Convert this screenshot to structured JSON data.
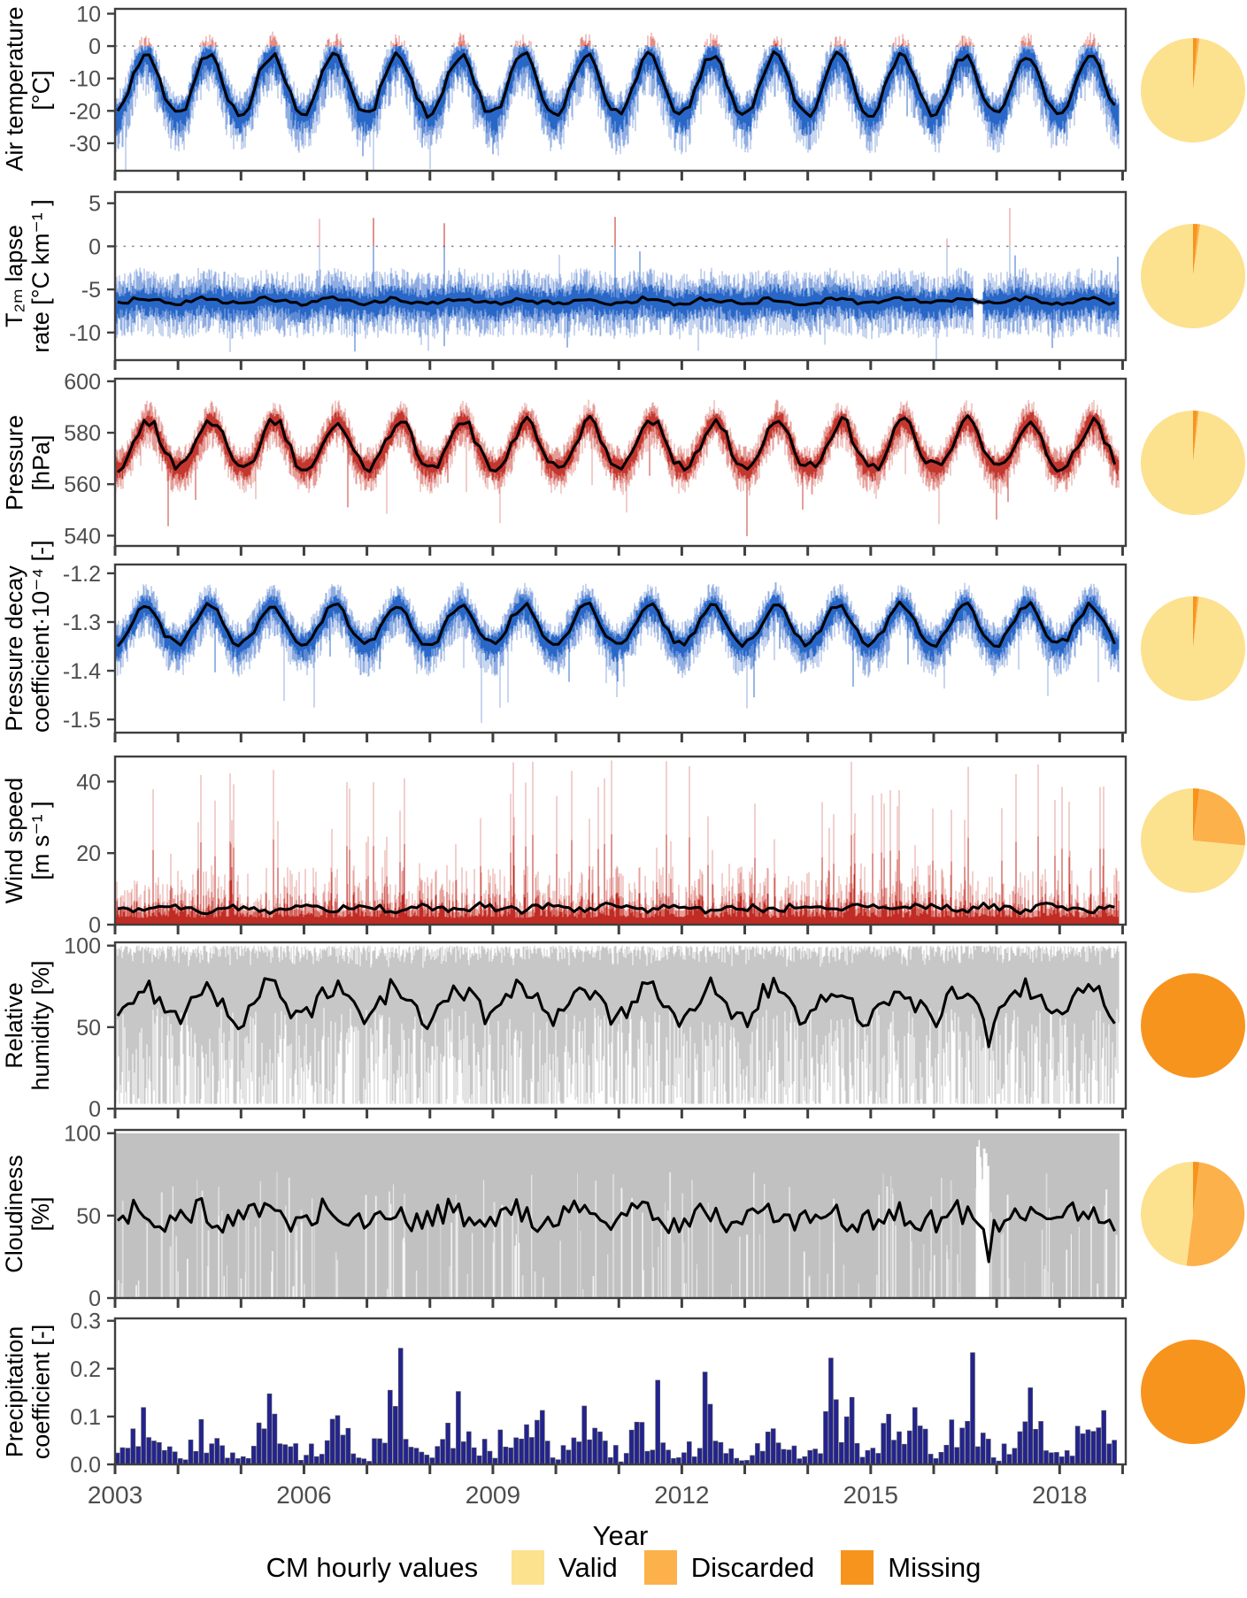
{
  "x_axis": {
    "label": "Year",
    "start": 2003,
    "end": 2019.05,
    "data_end": 2018.95,
    "tick_years": [
      2003,
      2004,
      2005,
      2006,
      2007,
      2008,
      2009,
      2010,
      2011,
      2012,
      2013,
      2014,
      2015,
      2016,
      2017,
      2018,
      2019
    ],
    "labeled_years": [
      "2003",
      "2006",
      "2009",
      "2012",
      "2015",
      "2018"
    ]
  },
  "legend": {
    "title": "CM hourly values",
    "items": [
      {
        "label": "Valid",
        "color": "#FCE18F"
      },
      {
        "label": "Discarded",
        "color": "#FCB14B"
      },
      {
        "label": "Missing",
        "color": "#F7941E"
      }
    ]
  },
  "style": {
    "axis_color": "#3f3f3f",
    "tick_label_color": "#4d4d4d",
    "mean_line_color": "#000000",
    "zero_line_color": "#8a8a8a"
  },
  "chart_data": [
    {
      "id": "air-temperature",
      "type": "line",
      "render": "envelope",
      "label_lines": [
        "Air temperature",
        "[°C]"
      ],
      "ylim": [
        -38.5,
        11.5
      ],
      "yticks": [
        {
          "v": 10,
          "t": "10"
        },
        {
          "v": 0,
          "t": "0"
        },
        {
          "v": -10,
          "t": "-10"
        },
        {
          "v": -20,
          "t": "-20"
        },
        {
          "v": -30,
          "t": "-30"
        }
      ],
      "zero_line": true,
      "red_above_zero": true,
      "colors": {
        "light": "#7d9fdd",
        "core": "#1d5fc4",
        "light_red": "#e58b84",
        "core_red": "#c4261d"
      },
      "monthly_climatology": [
        -21,
        -20,
        -16.5,
        -11,
        -6.5,
        -3.5,
        -2.5,
        -4,
        -8.5,
        -13.5,
        -17.5,
        -20.5
      ],
      "envelope": {
        "up": 7,
        "down": 13,
        "rare_down_p": 0.01,
        "rare_down_amt": 8,
        "rare_up_p": 0,
        "rare_up_amt": 0
      },
      "mean_jitter": 1.3,
      "pie": {
        "valid": 98.0,
        "discarded": 0.7,
        "missing": 1.3
      }
    },
    {
      "id": "t2m-lapse-rate",
      "type": "line",
      "render": "envelope",
      "label_lines": [
        "T₂ₘ lapse",
        "rate [°C km⁻¹ ]"
      ],
      "ylim": [
        -13.2,
        6.3
      ],
      "yticks": [
        {
          "v": 5,
          "t": "5"
        },
        {
          "v": 0,
          "t": "0"
        },
        {
          "v": -5,
          "t": "-5"
        },
        {
          "v": -10,
          "t": "-10"
        }
      ],
      "zero_line": true,
      "red_above_zero": true,
      "colors": {
        "light": "#7d9fdd",
        "core": "#1d5fc4",
        "light_red": "#e58b84",
        "core_red": "#c4261d"
      },
      "monthly_climatology": [
        -6.6,
        -6.55,
        -6.45,
        -6.3,
        -6.1,
        -6.05,
        -6.1,
        -6.2,
        -6.35,
        -6.45,
        -6.55,
        -6.6
      ],
      "envelope": {
        "up": 3.6,
        "down": 4.2,
        "rare_down_p": 0.008,
        "rare_down_amt": 3,
        "rare_up_p": 0.004,
        "rare_up_amt": 6.5
      },
      "gap": [
        2016.62,
        2016.78
      ],
      "mean_jitter": 0.25,
      "pie": {
        "valid": 97.8,
        "discarded": 0.7,
        "missing": 1.5
      }
    },
    {
      "id": "pressure",
      "type": "line",
      "render": "envelope",
      "label_lines": [
        "Pressure",
        "[hPa]"
      ],
      "ylim": [
        536,
        601
      ],
      "yticks": [
        {
          "v": 600,
          "t": "600"
        },
        {
          "v": 580,
          "t": "580"
        },
        {
          "v": 560,
          "t": "560"
        },
        {
          "v": 540,
          "t": "540"
        }
      ],
      "zero_line": false,
      "red_above_zero": false,
      "colors": {
        "light": "#e08a82",
        "core": "#c02c24",
        "light_red": "#e58b84",
        "core_red": "#c4261d"
      },
      "monthly_climatology": [
        567,
        566.5,
        569,
        573,
        577.5,
        582,
        585,
        584.5,
        581,
        575.5,
        570.5,
        567.5
      ],
      "envelope": {
        "up": 8,
        "down": 11,
        "rare_down_p": 0.012,
        "rare_down_amt": 16,
        "rare_up_p": 0,
        "rare_up_amt": 0
      },
      "mean_jitter": 2.2,
      "pie": {
        "valid": 98.2,
        "discarded": 0.5,
        "missing": 1.3
      }
    },
    {
      "id": "pressure-decay-coefficient",
      "type": "line",
      "render": "envelope",
      "label_lines": [
        "Pressure decay",
        "coefficient·10⁻⁴  [-]"
      ],
      "ylim": [
        -1.527,
        -1.182
      ],
      "yticks": [
        {
          "v": -1.2,
          "t": "-1.2"
        },
        {
          "v": -1.3,
          "t": "-1.3"
        },
        {
          "v": -1.4,
          "t": "-1.4"
        },
        {
          "v": -1.5,
          "t": "-1.5"
        }
      ],
      "zero_line": false,
      "red_above_zero": false,
      "colors": {
        "light": "#7d9fdd",
        "core": "#1d5fc4",
        "light_red": "#e58b84",
        "core_red": "#c4261d"
      },
      "monthly_climatology": [
        -1.345,
        -1.34,
        -1.325,
        -1.305,
        -1.285,
        -1.268,
        -1.262,
        -1.27,
        -1.292,
        -1.315,
        -1.333,
        -1.344
      ],
      "envelope": {
        "up": 0.045,
        "down": 0.07,
        "rare_down_p": 0.012,
        "rare_down_amt": 0.09,
        "rare_up_p": 0,
        "rare_up_amt": 0
      },
      "mean_jitter": 0.008,
      "pie": {
        "valid": 98.2,
        "discarded": 0.5,
        "missing": 1.3
      }
    },
    {
      "id": "wind-speed",
      "type": "line",
      "render": "spikes",
      "label_lines": [
        "Wind speed",
        "[m s⁻¹ ]"
      ],
      "ylim": [
        0,
        47
      ],
      "yticks": [
        {
          "v": 40,
          "t": "40"
        },
        {
          "v": 20,
          "t": "20"
        },
        {
          "v": 0,
          "t": "0"
        }
      ],
      "zero_line": false,
      "red_above_zero": false,
      "colors": {
        "light": "#e08a82",
        "core": "#c02c24"
      },
      "monthly_climatology": [
        4.8,
        4.6,
        4.9,
        4.4,
        4.0,
        3.8,
        4.0,
        4.3,
        4.8,
        5.2,
        5.4,
        5.0
      ],
      "spike": {
        "base": 1.5,
        "pow": 2.5,
        "scale": 13,
        "spike_p": 0.05,
        "spike_min": 18,
        "spike_range": 28
      },
      "mean_jitter": 0.9,
      "pie": {
        "valid": 73.5,
        "discarded": 24.5,
        "missing": 2.0
      }
    },
    {
      "id": "relative-humidity",
      "type": "line",
      "render": "raincloud",
      "label_lines": [
        "Relative",
        "humidity [%]"
      ],
      "ylim": [
        0,
        102
      ],
      "yticks": [
        {
          "v": 100,
          "t": "100"
        },
        {
          "v": 50,
          "t": "50"
        },
        {
          "v": 0,
          "t": "0"
        }
      ],
      "zero_line": false,
      "red_above_zero": false,
      "colors": {
        "gray": "#b9b9b9"
      },
      "monthly_climatology": [
        55,
        58,
        63,
        68,
        72,
        75,
        74,
        71,
        67,
        62,
        58,
        55
      ],
      "dip": {
        "t": 2016.87,
        "halfwidth": 0.05,
        "value": 38
      },
      "mean_jitter": 6.5,
      "pie": {
        "valid": 0,
        "discarded": 0,
        "missing": 100
      }
    },
    {
      "id": "cloudiness",
      "type": "line",
      "render": "cloud",
      "label_lines": [
        "Cloudiness",
        "[%]"
      ],
      "ylim": [
        0,
        102
      ],
      "yticks": [
        {
          "v": 100,
          "t": "100"
        },
        {
          "v": 50,
          "t": "50"
        },
        {
          "v": 0,
          "t": "0"
        }
      ],
      "zero_line": false,
      "red_above_zero": false,
      "colors": {
        "fill": "#c1c1c1"
      },
      "monthly_climatology": [
        46,
        48,
        51,
        53,
        55,
        53,
        50,
        48,
        46,
        44,
        45,
        47
      ],
      "dip": {
        "t": 2016.9,
        "halfwidth": 0.05,
        "value": 22
      },
      "gap_cluster": {
        "t": 2016.78,
        "halfwidth": 0.1
      },
      "mean_jitter": 7,
      "pie": {
        "valid": 48,
        "discarded": 50,
        "missing": 2
      }
    },
    {
      "id": "precipitation-coefficient",
      "type": "bar",
      "render": "bars",
      "label_lines": [
        "Precipitation",
        "coefficient [-]"
      ],
      "ylim": [
        0,
        0.305
      ],
      "yticks": [
        {
          "v": 0.3,
          "t": "0.3"
        },
        {
          "v": 0.2,
          "t": "0.2"
        },
        {
          "v": 0.1,
          "t": "0.1"
        },
        {
          "v": 0,
          "t": "0.0"
        }
      ],
      "zero_line": false,
      "red_above_zero": false,
      "colors": {
        "bar": "#23238f"
      },
      "monthly_climatology": [
        0.02,
        0.03,
        0.05,
        0.07,
        0.095,
        0.105,
        0.12,
        0.125,
        0.1,
        0.07,
        0.045,
        0.028
      ],
      "bar_max": 0.272,
      "pie": {
        "valid": 0,
        "discarded": 0,
        "missing": 100
      }
    }
  ]
}
